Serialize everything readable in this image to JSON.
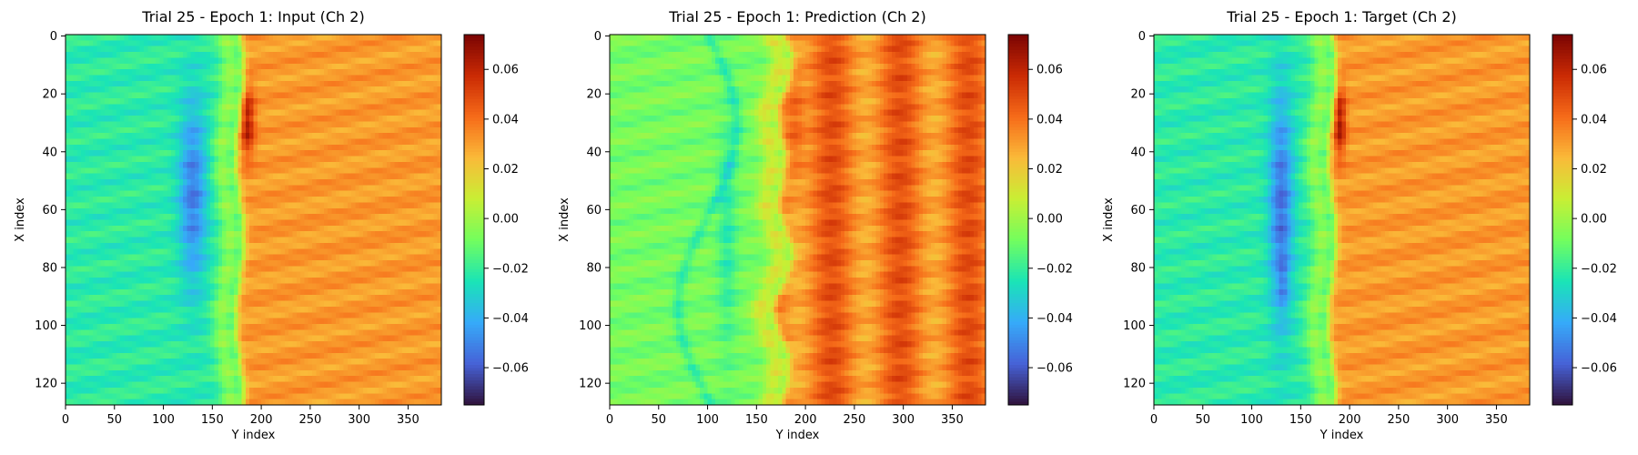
{
  "figure": {
    "background": "#ffffff"
  },
  "colormap": {
    "name": "turbo",
    "stops": [
      "#30123b",
      "#4662d7",
      "#36aaf9",
      "#1ae4b6",
      "#72fe5e",
      "#c8ef34",
      "#faba39",
      "#f66b19",
      "#ca2a04",
      "#7a0403"
    ]
  },
  "chart_data": [
    {
      "type": "heatmap",
      "title": "Trial 25 - Epoch 1: Input (Ch 2)",
      "xlabel": "Y index",
      "ylabel": "X index",
      "xlim": [
        0,
        383
      ],
      "ylim": [
        127,
        0
      ],
      "xticks": [
        0,
        50,
        100,
        150,
        200,
        250,
        300,
        350
      ],
      "yticks": [
        0,
        20,
        40,
        60,
        80,
        100,
        120
      ],
      "colorbar": {
        "vmin": -0.075,
        "vmax": 0.074,
        "ticks": [
          -0.06,
          -0.04,
          -0.02,
          0.0,
          0.02,
          0.04,
          0.06
        ],
        "tick_labels": [
          "−0.06",
          "−0.04",
          "−0.02",
          "0.00",
          "0.02",
          "0.04",
          "0.06"
        ]
      },
      "field": {
        "shock_x": 178,
        "left_value": -0.022,
        "right_value": 0.031,
        "blue_region": {
          "center": [
            130,
            55
          ],
          "radius": [
            14,
            32
          ],
          "value": -0.052
        },
        "dark_spot": {
          "center": [
            186,
            30
          ],
          "radius": [
            7,
            12
          ],
          "value": 0.065
        },
        "pattern": "input"
      }
    },
    {
      "type": "heatmap",
      "title": "Trial 25 - Epoch 1: Prediction (Ch 2)",
      "xlabel": "Y index",
      "ylabel": "X index",
      "xlim": [
        0,
        383
      ],
      "ylim": [
        127,
        0
      ],
      "xticks": [
        0,
        50,
        100,
        150,
        200,
        250,
        300,
        350
      ],
      "yticks": [
        0,
        20,
        40,
        60,
        80,
        100,
        120
      ],
      "colorbar": {
        "vmin": -0.075,
        "vmax": 0.074,
        "ticks": [
          -0.06,
          -0.04,
          -0.02,
          0.0,
          0.02,
          0.04,
          0.06
        ],
        "tick_labels": [
          "−0.06",
          "−0.04",
          "−0.02",
          "0.00",
          "0.02",
          "0.04",
          "0.06"
        ]
      },
      "field": {
        "shock_x": 178,
        "left_value": -0.008,
        "right_value": 0.038,
        "blue_region": {
          "center": [
            120,
            70
          ],
          "radius": [
            10,
            40
          ],
          "value": -0.022
        },
        "dark_spot": {
          "center": [
            190,
            30
          ],
          "radius": [
            10,
            20
          ],
          "value": 0.052
        },
        "pattern": "prediction"
      }
    },
    {
      "type": "heatmap",
      "title": "Trial 25 - Epoch 1: Target (Ch 2)",
      "xlabel": "Y index",
      "ylabel": "X index",
      "xlim": [
        0,
        383
      ],
      "ylim": [
        127,
        0
      ],
      "xticks": [
        0,
        50,
        100,
        150,
        200,
        250,
        300,
        350
      ],
      "yticks": [
        0,
        20,
        40,
        60,
        80,
        100,
        120
      ],
      "colorbar": {
        "vmin": -0.075,
        "vmax": 0.074,
        "ticks": [
          -0.06,
          -0.04,
          -0.02,
          0.0,
          0.02,
          0.04,
          0.06
        ],
        "tick_labels": [
          "−0.06",
          "−0.04",
          "−0.02",
          "0.00",
          "0.02",
          "0.04",
          "0.06"
        ]
      },
      "field": {
        "shock_x": 182,
        "left_value": -0.022,
        "right_value": 0.031,
        "blue_region": {
          "center": [
            130,
            60
          ],
          "radius": [
            12,
            40
          ],
          "value": -0.055
        },
        "dark_spot": {
          "center": [
            190,
            30
          ],
          "radius": [
            6,
            12
          ],
          "value": 0.066
        },
        "dark_blue_spot": {
          "center": [
            132,
            86
          ],
          "radius": [
            4,
            8
          ],
          "value": -0.068
        },
        "pattern": "target"
      }
    }
  ]
}
